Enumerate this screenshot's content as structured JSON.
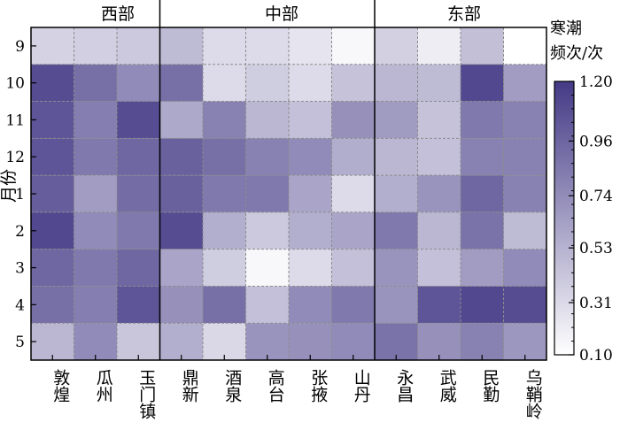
{
  "chart_data": {
    "type": "heatmap",
    "title": "",
    "ylabel": "月份",
    "region_labels": [
      "西部",
      "中部",
      "东部"
    ],
    "region_groups": [
      {
        "name": "西部",
        "columns": [
          "敦煌",
          "瓜州",
          "玉门镇"
        ]
      },
      {
        "name": "中部",
        "columns": [
          "鼎新",
          "酒泉",
          "高台",
          "张掖",
          "山丹"
        ]
      },
      {
        "name": "东部",
        "columns": [
          "永昌",
          "武威",
          "民勤",
          "乌鞘岭"
        ]
      }
    ],
    "x_categories": [
      "敦煌",
      "瓜州",
      "玉门镇",
      "鼎新",
      "酒泉",
      "高台",
      "张掖",
      "山丹",
      "永昌",
      "武威",
      "民勤",
      "乌鞘岭"
    ],
    "y_categories": [
      "9",
      "10",
      "11",
      "12",
      "1",
      "2",
      "3",
      "4",
      "5"
    ],
    "values": [
      [
        0.35,
        0.37,
        0.4,
        0.48,
        0.3,
        0.3,
        0.25,
        0.14,
        0.36,
        0.2,
        0.46,
        0.1
      ],
      [
        1.1,
        0.9,
        0.75,
        0.9,
        0.3,
        0.38,
        0.3,
        0.44,
        0.5,
        0.48,
        1.12,
        0.65
      ],
      [
        1.05,
        0.82,
        1.1,
        0.58,
        0.8,
        0.5,
        0.45,
        0.72,
        0.66,
        0.44,
        0.85,
        0.8
      ],
      [
        1.05,
        0.85,
        0.95,
        0.98,
        0.9,
        0.8,
        0.75,
        0.56,
        0.5,
        0.45,
        0.8,
        0.8
      ],
      [
        1.0,
        0.65,
        0.92,
        0.98,
        0.85,
        0.85,
        0.6,
        0.3,
        0.55,
        0.7,
        0.95,
        0.8
      ],
      [
        1.12,
        0.75,
        0.85,
        1.1,
        0.55,
        0.4,
        0.55,
        0.6,
        0.85,
        0.5,
        0.88,
        0.48
      ],
      [
        0.95,
        0.85,
        0.95,
        0.6,
        0.38,
        0.14,
        0.3,
        0.45,
        0.7,
        0.45,
        0.65,
        0.75
      ],
      [
        0.9,
        0.82,
        1.05,
        0.72,
        0.9,
        0.45,
        0.75,
        0.85,
        0.7,
        1.05,
        1.12,
        1.1
      ],
      [
        0.5,
        0.75,
        0.42,
        0.55,
        0.32,
        0.7,
        0.72,
        0.75,
        0.88,
        0.72,
        0.8,
        0.68
      ]
    ],
    "colorbar": {
      "label_line1": "寒潮",
      "label_line2": "频次/次",
      "min": 0.1,
      "max": 1.2,
      "ticks": [
        "1.20",
        "0.96",
        "0.74",
        "0.53",
        "0.31",
        "0.10"
      ],
      "color_low": "#ffffff",
      "color_high": "#443a86"
    }
  }
}
